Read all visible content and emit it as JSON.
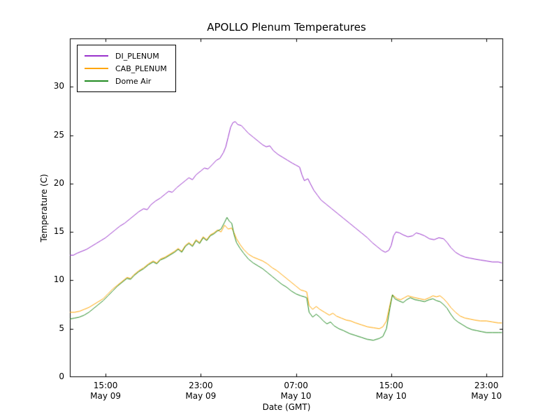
{
  "chart_data": {
    "type": "line",
    "title": "APOLLO Plenum Temperatures",
    "xlabel": "Date (GMT)",
    "ylabel": "Temperature (C)",
    "x_unit": "hours since May 09 00:00 GMT",
    "xlim": [
      12.0,
      48.4
    ],
    "ylim": [
      0,
      35
    ],
    "grid": false,
    "legend_position": "upper left",
    "yticks": [
      0,
      5,
      10,
      15,
      20,
      25,
      30
    ],
    "xticks": [
      {
        "value": 15,
        "time": "15:00",
        "date": "May 09"
      },
      {
        "value": 23,
        "time": "23:00",
        "date": "May 09"
      },
      {
        "value": 31,
        "time": "07:00",
        "date": "May 10"
      },
      {
        "value": 39,
        "time": "15:00",
        "date": "May 10"
      },
      {
        "value": 47,
        "time": "23:00",
        "date": "May 10"
      }
    ],
    "series": [
      {
        "name": "DI_PLENUM",
        "color": "#9932CC",
        "points": [
          [
            12.0,
            12.6
          ],
          [
            12.3,
            12.6
          ],
          [
            12.6,
            12.8
          ],
          [
            13.0,
            13.0
          ],
          [
            13.4,
            13.2
          ],
          [
            13.8,
            13.5
          ],
          [
            14.2,
            13.8
          ],
          [
            14.6,
            14.1
          ],
          [
            15.0,
            14.4
          ],
          [
            15.4,
            14.8
          ],
          [
            15.8,
            15.2
          ],
          [
            16.2,
            15.6
          ],
          [
            16.6,
            15.9
          ],
          [
            17.0,
            16.3
          ],
          [
            17.4,
            16.7
          ],
          [
            17.8,
            17.1
          ],
          [
            18.2,
            17.4
          ],
          [
            18.5,
            17.3
          ],
          [
            18.8,
            17.8
          ],
          [
            19.2,
            18.2
          ],
          [
            19.6,
            18.5
          ],
          [
            20.0,
            18.9
          ],
          [
            20.3,
            19.2
          ],
          [
            20.6,
            19.1
          ],
          [
            21.0,
            19.6
          ],
          [
            21.4,
            20.0
          ],
          [
            21.7,
            20.3
          ],
          [
            22.0,
            20.6
          ],
          [
            22.3,
            20.4
          ],
          [
            22.6,
            20.9
          ],
          [
            23.0,
            21.3
          ],
          [
            23.3,
            21.6
          ],
          [
            23.6,
            21.5
          ],
          [
            24.0,
            22.0
          ],
          [
            24.3,
            22.4
          ],
          [
            24.6,
            22.6
          ],
          [
            24.9,
            23.2
          ],
          [
            25.1,
            23.8
          ],
          [
            25.3,
            24.8
          ],
          [
            25.5,
            25.8
          ],
          [
            25.7,
            26.3
          ],
          [
            25.9,
            26.4
          ],
          [
            26.1,
            26.1
          ],
          [
            26.4,
            26.0
          ],
          [
            26.7,
            25.6
          ],
          [
            27.0,
            25.2
          ],
          [
            27.4,
            24.8
          ],
          [
            27.8,
            24.4
          ],
          [
            28.2,
            24.0
          ],
          [
            28.5,
            23.8
          ],
          [
            28.8,
            23.9
          ],
          [
            29.1,
            23.4
          ],
          [
            29.5,
            23.0
          ],
          [
            29.9,
            22.7
          ],
          [
            30.3,
            22.4
          ],
          [
            30.7,
            22.1
          ],
          [
            31.0,
            21.9
          ],
          [
            31.3,
            21.7
          ],
          [
            31.5,
            20.9
          ],
          [
            31.7,
            20.3
          ],
          [
            32.0,
            20.5
          ],
          [
            32.2,
            20.0
          ],
          [
            32.5,
            19.3
          ],
          [
            32.8,
            18.8
          ],
          [
            33.1,
            18.3
          ],
          [
            33.5,
            17.9
          ],
          [
            34.0,
            17.4
          ],
          [
            34.5,
            16.9
          ],
          [
            35.0,
            16.4
          ],
          [
            35.5,
            15.9
          ],
          [
            36.0,
            15.4
          ],
          [
            36.5,
            14.9
          ],
          [
            37.0,
            14.4
          ],
          [
            37.4,
            13.9
          ],
          [
            37.8,
            13.5
          ],
          [
            38.2,
            13.1
          ],
          [
            38.5,
            12.9
          ],
          [
            38.8,
            13.1
          ],
          [
            39.0,
            13.6
          ],
          [
            39.2,
            14.6
          ],
          [
            39.4,
            15.0
          ],
          [
            39.7,
            14.9
          ],
          [
            40.0,
            14.7
          ],
          [
            40.4,
            14.5
          ],
          [
            40.8,
            14.6
          ],
          [
            41.1,
            14.9
          ],
          [
            41.4,
            14.8
          ],
          [
            41.8,
            14.6
          ],
          [
            42.2,
            14.3
          ],
          [
            42.6,
            14.2
          ],
          [
            43.0,
            14.4
          ],
          [
            43.4,
            14.3
          ],
          [
            43.7,
            13.9
          ],
          [
            44.0,
            13.4
          ],
          [
            44.4,
            12.9
          ],
          [
            44.8,
            12.6
          ],
          [
            45.2,
            12.4
          ],
          [
            45.6,
            12.3
          ],
          [
            46.0,
            12.2
          ],
          [
            46.5,
            12.1
          ],
          [
            47.0,
            12.0
          ],
          [
            47.5,
            11.9
          ],
          [
            48.0,
            11.9
          ],
          [
            48.3,
            11.8
          ]
        ]
      },
      {
        "name": "CAB_PLENUM",
        "color": "#FFA500",
        "points": [
          [
            12.0,
            6.7
          ],
          [
            12.4,
            6.7
          ],
          [
            12.8,
            6.8
          ],
          [
            13.2,
            7.0
          ],
          [
            13.6,
            7.2
          ],
          [
            14.0,
            7.5
          ],
          [
            14.4,
            7.8
          ],
          [
            14.8,
            8.1
          ],
          [
            15.2,
            8.6
          ],
          [
            15.6,
            9.1
          ],
          [
            16.0,
            9.5
          ],
          [
            16.4,
            9.9
          ],
          [
            16.8,
            10.3
          ],
          [
            17.1,
            10.2
          ],
          [
            17.4,
            10.6
          ],
          [
            17.8,
            11.0
          ],
          [
            18.2,
            11.3
          ],
          [
            18.6,
            11.7
          ],
          [
            19.0,
            12.0
          ],
          [
            19.3,
            11.8
          ],
          [
            19.6,
            12.2
          ],
          [
            20.0,
            12.4
          ],
          [
            20.4,
            12.7
          ],
          [
            20.8,
            13.0
          ],
          [
            21.1,
            13.3
          ],
          [
            21.4,
            13.0
          ],
          [
            21.7,
            13.6
          ],
          [
            22.0,
            13.9
          ],
          [
            22.3,
            13.6
          ],
          [
            22.6,
            14.2
          ],
          [
            22.9,
            13.9
          ],
          [
            23.2,
            14.5
          ],
          [
            23.5,
            14.2
          ],
          [
            23.8,
            14.7
          ],
          [
            24.1,
            14.9
          ],
          [
            24.4,
            15.2
          ],
          [
            24.7,
            15.0
          ],
          [
            25.0,
            15.7
          ],
          [
            25.3,
            15.3
          ],
          [
            25.6,
            15.4
          ],
          [
            25.8,
            14.9
          ],
          [
            26.0,
            14.3
          ],
          [
            26.3,
            13.7
          ],
          [
            26.6,
            13.2
          ],
          [
            27.0,
            12.7
          ],
          [
            27.4,
            12.4
          ],
          [
            27.8,
            12.2
          ],
          [
            28.2,
            12.0
          ],
          [
            28.6,
            11.7
          ],
          [
            29.0,
            11.3
          ],
          [
            29.4,
            11.0
          ],
          [
            29.8,
            10.6
          ],
          [
            30.2,
            10.2
          ],
          [
            30.6,
            9.8
          ],
          [
            31.0,
            9.4
          ],
          [
            31.4,
            9.0
          ],
          [
            31.7,
            8.9
          ],
          [
            31.9,
            8.8
          ],
          [
            32.1,
            7.4
          ],
          [
            32.4,
            7.0
          ],
          [
            32.7,
            7.3
          ],
          [
            33.0,
            7.0
          ],
          [
            33.4,
            6.7
          ],
          [
            33.8,
            6.4
          ],
          [
            34.1,
            6.6
          ],
          [
            34.4,
            6.3
          ],
          [
            34.8,
            6.1
          ],
          [
            35.2,
            5.9
          ],
          [
            35.6,
            5.8
          ],
          [
            36.0,
            5.6
          ],
          [
            36.5,
            5.4
          ],
          [
            37.0,
            5.2
          ],
          [
            37.5,
            5.1
          ],
          [
            38.0,
            5.0
          ],
          [
            38.3,
            5.2
          ],
          [
            38.6,
            5.8
          ],
          [
            38.9,
            7.5
          ],
          [
            39.1,
            8.5
          ],
          [
            39.3,
            8.3
          ],
          [
            39.5,
            8.1
          ],
          [
            39.8,
            8.0
          ],
          [
            40.1,
            8.2
          ],
          [
            40.4,
            8.4
          ],
          [
            40.7,
            8.3
          ],
          [
            41.0,
            8.2
          ],
          [
            41.4,
            8.1
          ],
          [
            41.8,
            8.0
          ],
          [
            42.2,
            8.2
          ],
          [
            42.5,
            8.4
          ],
          [
            42.8,
            8.3
          ],
          [
            43.1,
            8.4
          ],
          [
            43.4,
            8.1
          ],
          [
            43.7,
            7.7
          ],
          [
            44.0,
            7.2
          ],
          [
            44.4,
            6.7
          ],
          [
            44.8,
            6.3
          ],
          [
            45.2,
            6.1
          ],
          [
            45.6,
            6.0
          ],
          [
            46.0,
            5.9
          ],
          [
            46.5,
            5.8
          ],
          [
            47.0,
            5.8
          ],
          [
            47.5,
            5.7
          ],
          [
            48.0,
            5.6
          ],
          [
            48.3,
            5.6
          ]
        ]
      },
      {
        "name": "Dome Air",
        "color": "#228B22",
        "points": [
          [
            12.0,
            6.0
          ],
          [
            12.4,
            6.1
          ],
          [
            12.8,
            6.2
          ],
          [
            13.2,
            6.4
          ],
          [
            13.6,
            6.7
          ],
          [
            14.0,
            7.1
          ],
          [
            14.4,
            7.5
          ],
          [
            14.8,
            7.9
          ],
          [
            15.2,
            8.4
          ],
          [
            15.6,
            8.9
          ],
          [
            16.0,
            9.4
          ],
          [
            16.4,
            9.8
          ],
          [
            16.8,
            10.2
          ],
          [
            17.1,
            10.1
          ],
          [
            17.4,
            10.5
          ],
          [
            17.8,
            10.9
          ],
          [
            18.2,
            11.2
          ],
          [
            18.6,
            11.6
          ],
          [
            19.0,
            11.9
          ],
          [
            19.3,
            11.7
          ],
          [
            19.6,
            12.1
          ],
          [
            20.0,
            12.3
          ],
          [
            20.4,
            12.6
          ],
          [
            20.8,
            12.9
          ],
          [
            21.1,
            13.2
          ],
          [
            21.4,
            12.9
          ],
          [
            21.7,
            13.5
          ],
          [
            22.0,
            13.8
          ],
          [
            22.3,
            13.5
          ],
          [
            22.6,
            14.1
          ],
          [
            22.9,
            13.8
          ],
          [
            23.2,
            14.4
          ],
          [
            23.5,
            14.1
          ],
          [
            23.8,
            14.6
          ],
          [
            24.1,
            14.8
          ],
          [
            24.4,
            15.1
          ],
          [
            24.7,
            15.3
          ],
          [
            25.0,
            16.0
          ],
          [
            25.2,
            16.5
          ],
          [
            25.4,
            16.1
          ],
          [
            25.6,
            15.9
          ],
          [
            25.8,
            14.7
          ],
          [
            26.0,
            13.9
          ],
          [
            26.3,
            13.3
          ],
          [
            26.6,
            12.8
          ],
          [
            27.0,
            12.2
          ],
          [
            27.4,
            11.8
          ],
          [
            27.8,
            11.5
          ],
          [
            28.2,
            11.2
          ],
          [
            28.6,
            10.8
          ],
          [
            29.0,
            10.4
          ],
          [
            29.4,
            10.0
          ],
          [
            29.8,
            9.6
          ],
          [
            30.2,
            9.3
          ],
          [
            30.6,
            8.9
          ],
          [
            31.0,
            8.6
          ],
          [
            31.4,
            8.4
          ],
          [
            31.7,
            8.3
          ],
          [
            31.9,
            8.2
          ],
          [
            32.1,
            6.7
          ],
          [
            32.4,
            6.2
          ],
          [
            32.7,
            6.5
          ],
          [
            33.0,
            6.2
          ],
          [
            33.3,
            5.8
          ],
          [
            33.6,
            5.5
          ],
          [
            33.9,
            5.7
          ],
          [
            34.2,
            5.3
          ],
          [
            34.6,
            5.0
          ],
          [
            35.0,
            4.8
          ],
          [
            35.5,
            4.5
          ],
          [
            36.0,
            4.3
          ],
          [
            36.5,
            4.1
          ],
          [
            37.0,
            3.9
          ],
          [
            37.5,
            3.8
          ],
          [
            38.0,
            4.0
          ],
          [
            38.3,
            4.2
          ],
          [
            38.6,
            5.0
          ],
          [
            38.9,
            7.2
          ],
          [
            39.1,
            8.5
          ],
          [
            39.3,
            8.1
          ],
          [
            39.6,
            7.9
          ],
          [
            40.0,
            7.7
          ],
          [
            40.3,
            8.0
          ],
          [
            40.6,
            8.2
          ],
          [
            41.0,
            8.0
          ],
          [
            41.4,
            7.9
          ],
          [
            41.8,
            7.8
          ],
          [
            42.2,
            8.0
          ],
          [
            42.5,
            8.1
          ],
          [
            42.8,
            7.9
          ],
          [
            43.1,
            7.8
          ],
          [
            43.4,
            7.5
          ],
          [
            43.7,
            7.1
          ],
          [
            44.0,
            6.5
          ],
          [
            44.3,
            6.0
          ],
          [
            44.6,
            5.7
          ],
          [
            45.0,
            5.4
          ],
          [
            45.4,
            5.1
          ],
          [
            45.8,
            4.9
          ],
          [
            46.2,
            4.8
          ],
          [
            46.6,
            4.7
          ],
          [
            47.0,
            4.6
          ],
          [
            47.5,
            4.6
          ],
          [
            48.0,
            4.6
          ],
          [
            48.3,
            4.6
          ]
        ]
      }
    ],
    "frame_color": "#000000",
    "background_color": "#ffffff"
  }
}
